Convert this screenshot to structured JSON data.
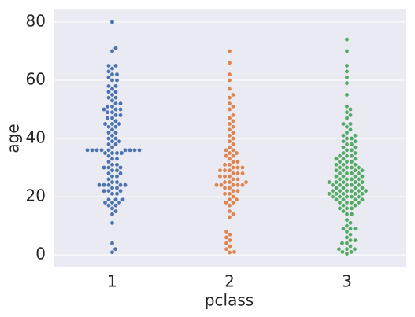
{
  "chart_data": {
    "type": "swarm",
    "xlabel": "pclass",
    "ylabel": "age",
    "categories": [
      "1",
      "2",
      "3"
    ],
    "colors": [
      "#4c72b0",
      "#dd8452",
      "#55a868"
    ],
    "values": [
      [
        0.92,
        2,
        4,
        11,
        14,
        15,
        16,
        17,
        17,
        18,
        18,
        18,
        19,
        19,
        19,
        21,
        21,
        22,
        22,
        22,
        23,
        23,
        24,
        24,
        24,
        24,
        24,
        25,
        25,
        26,
        27,
        27,
        28,
        28,
        29,
        29,
        30,
        30,
        30,
        31,
        31,
        32,
        33,
        33,
        34,
        35,
        35,
        35,
        35,
        36,
        36,
        36,
        36,
        36,
        36,
        36,
        36,
        36,
        37,
        38,
        38,
        39,
        39,
        40,
        40,
        41,
        42,
        42,
        43,
        44,
        44,
        45,
        45,
        45,
        46,
        47,
        47,
        48,
        48,
        49,
        49,
        50,
        50,
        50,
        51,
        51,
        52,
        52,
        53,
        54,
        54,
        55,
        56,
        56,
        57,
        58,
        58,
        60,
        60,
        61,
        62,
        62,
        63,
        64,
        65,
        65,
        70,
        71,
        80
      ],
      [
        0.83,
        1,
        2,
        3,
        4,
        5,
        6,
        7,
        8,
        13,
        14,
        15,
        17,
        18,
        18,
        19,
        19,
        20,
        21,
        21,
        22,
        22,
        23,
        23,
        24,
        24,
        24,
        24,
        24,
        25,
        25,
        25,
        26,
        26,
        27,
        27,
        27,
        28,
        28,
        28,
        29,
        29,
        29,
        30,
        30,
        30,
        31,
        31,
        32,
        32,
        33,
        34,
        34,
        35,
        35,
        36,
        36,
        37,
        38,
        39,
        40,
        41,
        42,
        43,
        44,
        45,
        46,
        47,
        48,
        50,
        51,
        52,
        54,
        55,
        57,
        60,
        62,
        66,
        70
      ],
      [
        0.42,
        1,
        1,
        2,
        2,
        2,
        3,
        4,
        4,
        5,
        5,
        6,
        7,
        8,
        9,
        9,
        9,
        10,
        11,
        12,
        14,
        14,
        15,
        16,
        16,
        16,
        17,
        17,
        18,
        18,
        18,
        18,
        19,
        19,
        19,
        19,
        20,
        20,
        20,
        20,
        20,
        21,
        21,
        21,
        21,
        21,
        22,
        22,
        22,
        22,
        22,
        22,
        23,
        23,
        23,
        23,
        24,
        24,
        24,
        24,
        24,
        25,
        25,
        25,
        25,
        25,
        26,
        26,
        26,
        26,
        27,
        27,
        27,
        27,
        28,
        28,
        28,
        28,
        29,
        29,
        29,
        29,
        30,
        30,
        30,
        30,
        31,
        31,
        31,
        32,
        32,
        32,
        33,
        33,
        33,
        34,
        34,
        34,
        35,
        35,
        36,
        36,
        37,
        37,
        38,
        38,
        39,
        39,
        40,
        40,
        41,
        41,
        42,
        43,
        44,
        45,
        45,
        47,
        48,
        49,
        50,
        51,
        55,
        59,
        61,
        63,
        65,
        70,
        74
      ]
    ],
    "ylim": [
      -4.3,
      84.3
    ],
    "yticks": [
      0,
      20,
      40,
      60,
      80
    ],
    "grid": true
  }
}
